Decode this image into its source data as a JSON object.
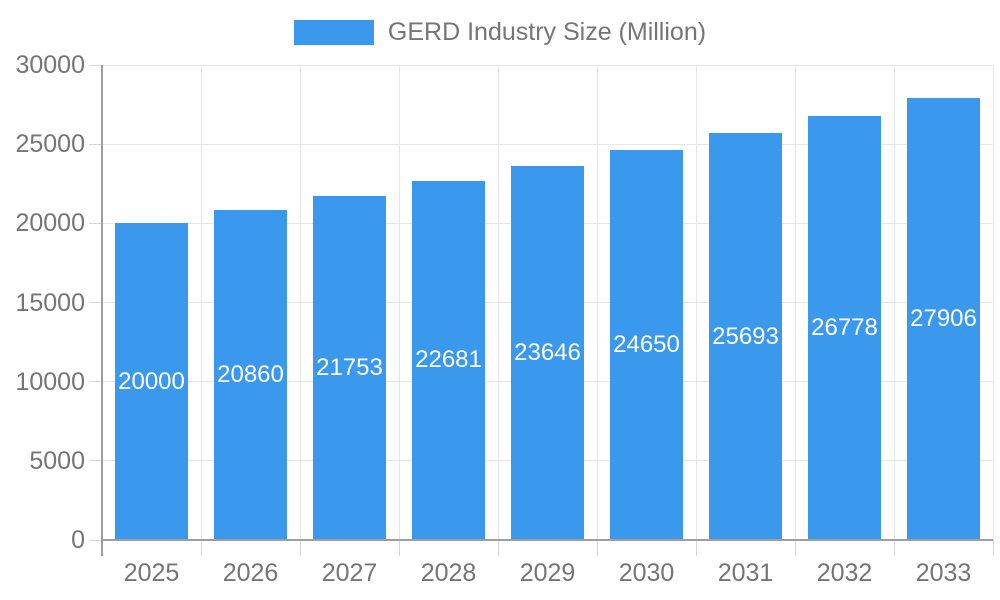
{
  "legend": {
    "label": "GERD Industry Size (Million)"
  },
  "chart_data": {
    "type": "bar",
    "title": "GERD Industry Size (Million)",
    "legend_entries": [
      "GERD Industry Size (Million)"
    ],
    "legend_position": "top-center",
    "categories": [
      "2025",
      "2026",
      "2027",
      "2028",
      "2029",
      "2030",
      "2031",
      "2032",
      "2033"
    ],
    "values": [
      20000,
      20860,
      21753,
      22681,
      23646,
      24650,
      25693,
      26778,
      27906
    ],
    "value_labels_shown": true,
    "xlabel": "",
    "ylabel": "",
    "ylim": [
      0,
      30000
    ],
    "yticks": [
      0,
      5000,
      10000,
      15000,
      20000,
      25000,
      30000
    ],
    "grid": true,
    "colors": {
      "bar": "#3A99EC",
      "grid_line": "#e6e6e6",
      "tick_line": "#d6d6d6",
      "axis_line": "#9e9e9e",
      "axis_text": "#757575",
      "value_label_text": "#ffffff",
      "background": "#ffffff"
    }
  }
}
